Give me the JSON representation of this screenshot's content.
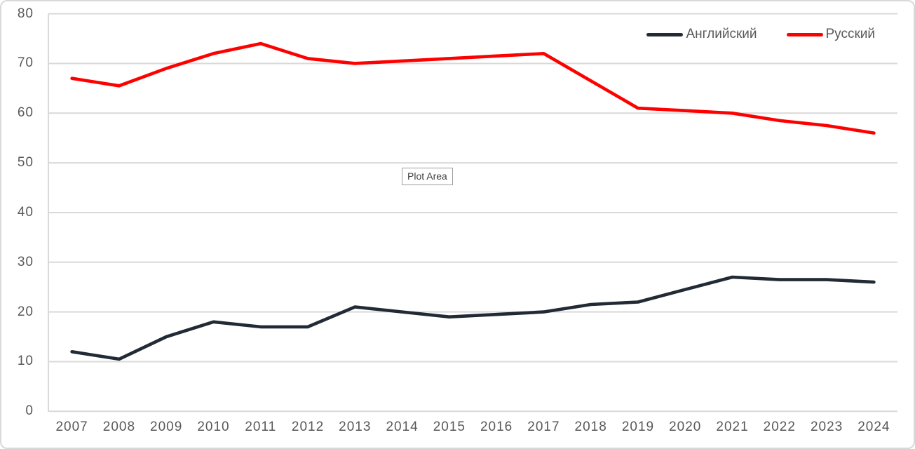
{
  "tooltip": {
    "label": "Plot Area"
  },
  "colors": {
    "background": "#ffffff",
    "chart_border": "#d9d9d9",
    "gridline": "#d9d9d9",
    "axis_line": "#d9d9d9",
    "axis_text": "#595959",
    "tooltip_border": "#9d9d9d",
    "tooltip_text": "#404040"
  },
  "chart_data": {
    "type": "line",
    "title": "",
    "xlabel": "",
    "ylabel": "",
    "categories": [
      "2007",
      "2008",
      "2009",
      "2010",
      "2011",
      "2012",
      "2013",
      "2014",
      "2015",
      "2016",
      "2017",
      "2018",
      "2019",
      "2020",
      "2021",
      "2022",
      "2023",
      "2024"
    ],
    "series": [
      {
        "name": "Английский",
        "color": "#222A35",
        "values": [
          12,
          10.5,
          15,
          18,
          17,
          17,
          21,
          20,
          19,
          19.5,
          20,
          21.5,
          22,
          24.5,
          27,
          26.5,
          26.5,
          26
        ]
      },
      {
        "name": "Русский",
        "color": "#FF0000",
        "values": [
          67,
          65.5,
          69,
          72,
          74,
          71,
          70,
          70.5,
          71,
          71.5,
          72,
          66.5,
          61,
          60.5,
          60,
          58.5,
          57.5,
          56
        ]
      }
    ],
    "ylim": [
      0,
      80
    ],
    "yticks": [
      0,
      10,
      20,
      30,
      40,
      50,
      60,
      70,
      80
    ],
    "grid": true,
    "legend_position": "top-right"
  }
}
